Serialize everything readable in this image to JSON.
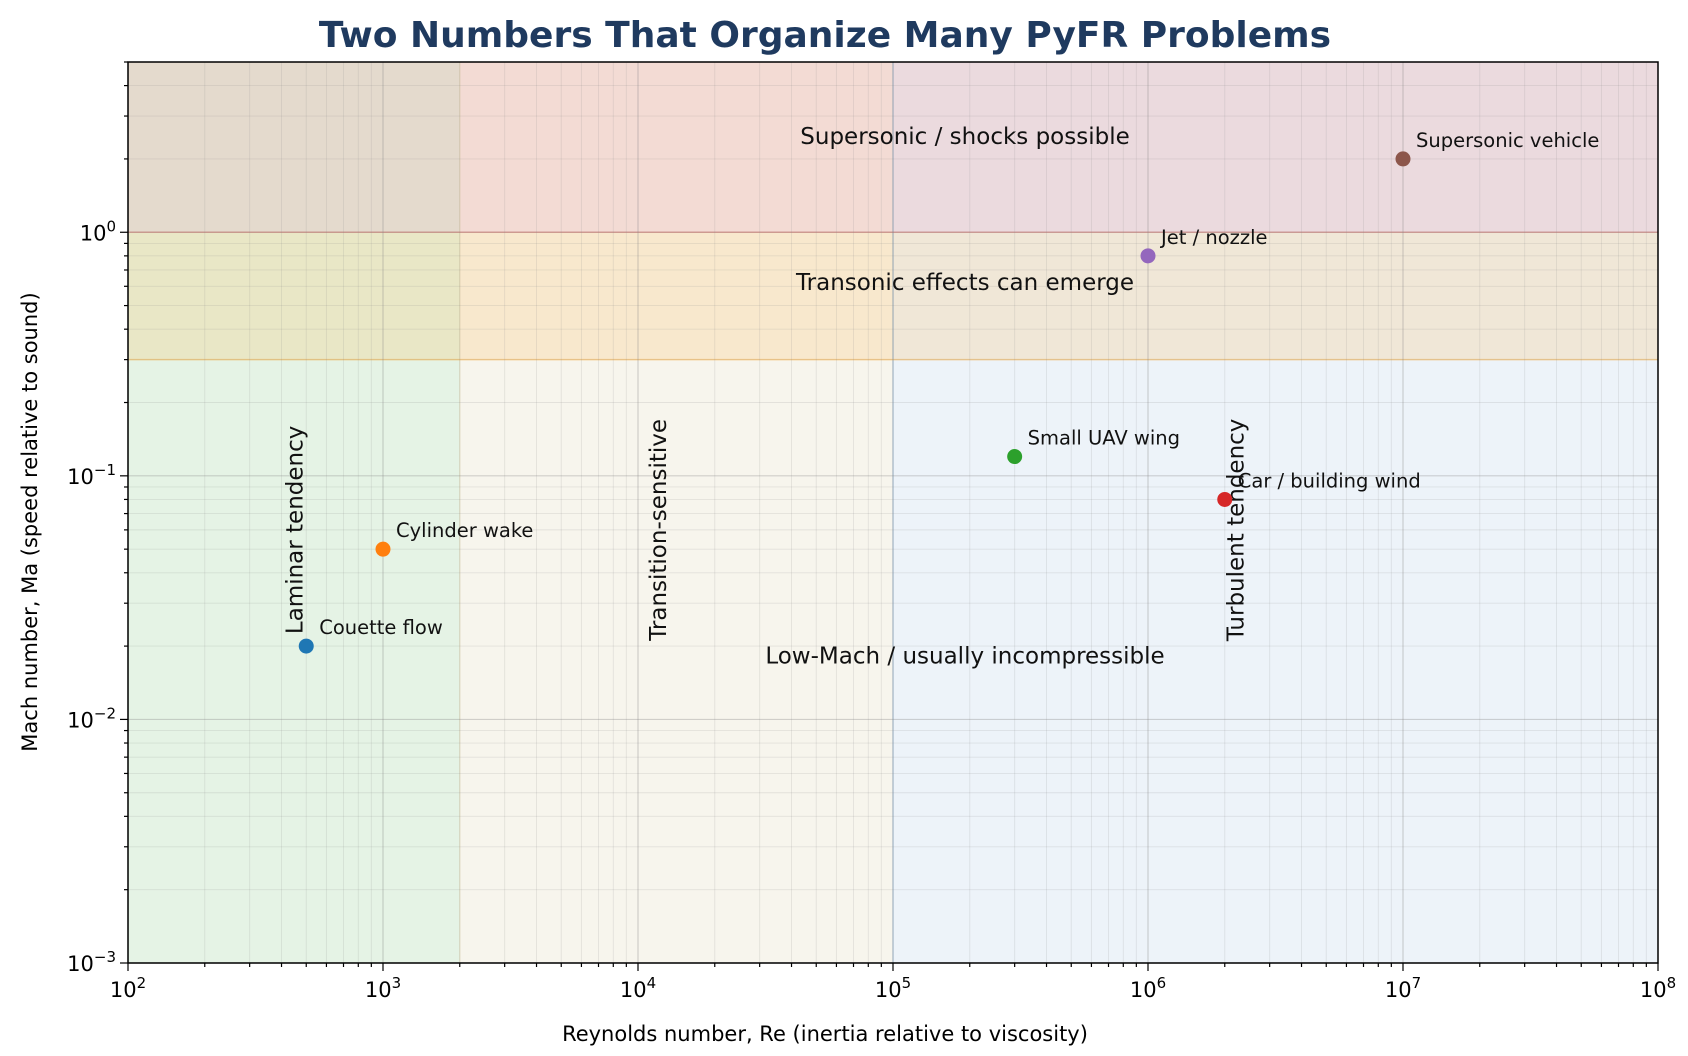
{
  "chart_data": {
    "type": "scatter",
    "title": "Two Numbers That Organize Many PyFR Problems",
    "xlabel": "Reynolds number, Re (inertia relative to viscosity)",
    "ylabel": "Mach number, Ma (speed relative to sound)",
    "xscale": "log",
    "yscale": "log",
    "xlim": [
      100,
      100000000
    ],
    "ylim": [
      0.001,
      5
    ],
    "grid": true,
    "x_ticks": [
      {
        "value": 100,
        "base": "10",
        "exp": "2"
      },
      {
        "value": 1000,
        "base": "10",
        "exp": "3"
      },
      {
        "value": 10000,
        "base": "10",
        "exp": "4"
      },
      {
        "value": 100000,
        "base": "10",
        "exp": "5"
      },
      {
        "value": 1000000,
        "base": "10",
        "exp": "6"
      },
      {
        "value": 10000000,
        "base": "10",
        "exp": "7"
      },
      {
        "value": 100000000,
        "base": "10",
        "exp": "8"
      }
    ],
    "y_ticks": [
      {
        "value": 0.001,
        "base": "10",
        "exp": "−3"
      },
      {
        "value": 0.01,
        "base": "10",
        "exp": "−2"
      },
      {
        "value": 0.1,
        "base": "10",
        "exp": "−1"
      },
      {
        "value": 1,
        "base": "10",
        "exp": "0"
      }
    ],
    "regions": [
      {
        "axis": "x",
        "from": 100,
        "to": 2000,
        "color": "#2ca02c",
        "alpha": 0.12
      },
      {
        "axis": "x",
        "from": 2000,
        "to": 100000,
        "color": "#d4c89a",
        "alpha": 0.18
      },
      {
        "axis": "x",
        "from": 100000,
        "to": 100000000,
        "color": "#6fa0d0",
        "alpha": 0.12
      },
      {
        "axis": "y",
        "from": 0.3,
        "to": 1,
        "color": "#ffa726",
        "alpha": 0.16
      },
      {
        "axis": "y",
        "from": 1,
        "to": 5,
        "color": "#e0554f",
        "alpha": 0.16
      }
    ],
    "region_labels": [
      {
        "text": "Supersonic / shocks possible",
        "x": 200000,
        "y": 2.3,
        "rotate": false
      },
      {
        "text": "Transonic effects can emerge",
        "x": 200000,
        "y": 0.58,
        "rotate": false
      },
      {
        "text": "Low-Mach / usually incompressible",
        "x": 200000,
        "y": 0.017,
        "rotate": false
      },
      {
        "text": "Laminar tendency",
        "x": 450,
        "y": 0.06,
        "rotate": true
      },
      {
        "text": "Transition-sensitive",
        "x": 12000,
        "y": 0.06,
        "rotate": true
      },
      {
        "text": "Turbulent tendency",
        "x": 2200000,
        "y": 0.06,
        "rotate": true
      }
    ],
    "points": [
      {
        "name": "Couette flow",
        "x": 500,
        "y": 0.02,
        "color": "#1f77b4"
      },
      {
        "name": "Cylinder wake",
        "x": 1000,
        "y": 0.05,
        "color": "#ff7f0e"
      },
      {
        "name": "Small UAV wing",
        "x": 300000,
        "y": 0.12,
        "color": "#2ca02c"
      },
      {
        "name": "Car / building wind",
        "x": 2000000,
        "y": 0.08,
        "color": "#d62728"
      },
      {
        "name": "Jet / nozzle",
        "x": 1000000,
        "y": 0.8,
        "color": "#9467bd"
      },
      {
        "name": "Supersonic vehicle",
        "x": 10000000,
        "y": 2,
        "color": "#8c564b"
      }
    ]
  }
}
